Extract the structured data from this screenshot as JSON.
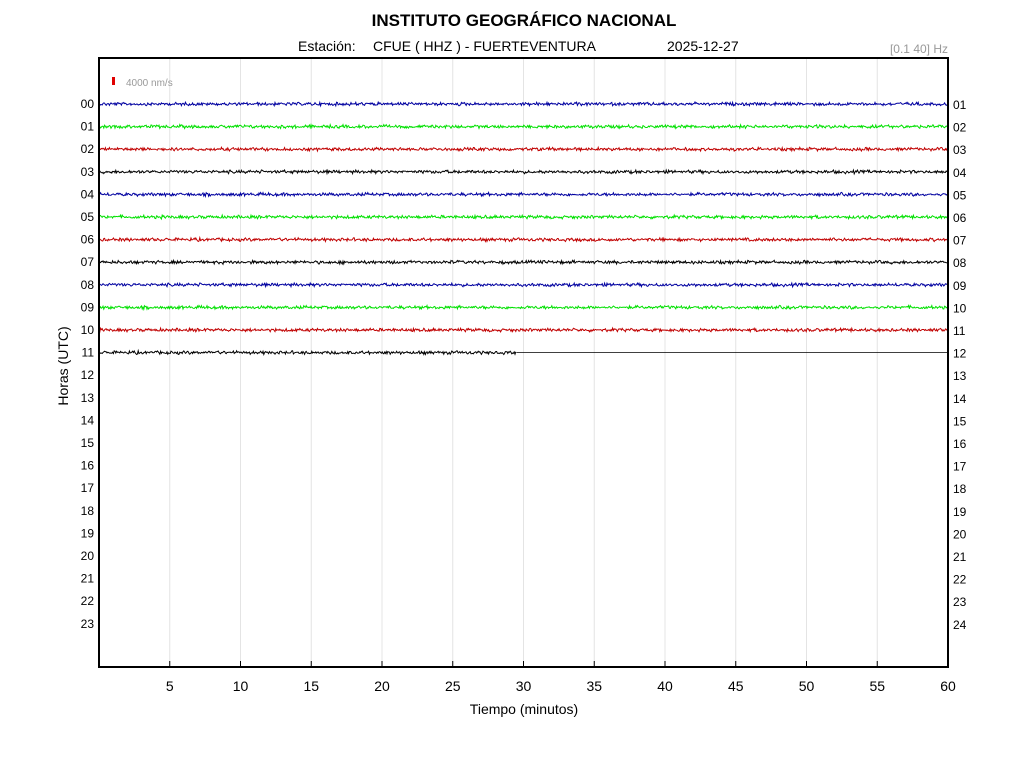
{
  "header": {
    "title": "INSTITUTO GEOGRÁFICO NACIONAL",
    "station_prefix": "Estación:",
    "station": "CFUE ( HHZ ) - FUERTEVENTURA",
    "date": "2025-12-27",
    "band": "[0.1 40] Hz"
  },
  "scale_bar": {
    "label": "4000 nm/s",
    "color": "#e00000"
  },
  "chart_data": {
    "type": "line",
    "title": "INSTITUTO GEOGRÁFICO NACIONAL",
    "xlabel": "Tiempo (minutos)",
    "ylabel": "Horas (UTC)",
    "xlim": [
      0,
      60
    ],
    "x_ticks": [
      "5",
      "10",
      "15",
      "20",
      "25",
      "30",
      "35",
      "40",
      "45",
      "50",
      "55",
      "60"
    ],
    "x_tick_values": [
      5,
      10,
      15,
      20,
      25,
      30,
      35,
      40,
      45,
      50,
      55,
      60
    ],
    "grid": true,
    "left_labels": [
      "00",
      "01",
      "02",
      "03",
      "04",
      "05",
      "06",
      "07",
      "08",
      "09",
      "10",
      "11",
      "12",
      "13",
      "14",
      "15",
      "16",
      "17",
      "18",
      "19",
      "20",
      "21",
      "22",
      "23"
    ],
    "right_labels": [
      "01",
      "02",
      "03",
      "04",
      "05",
      "06",
      "07",
      "08",
      "09",
      "10",
      "11",
      "12",
      "13",
      "14",
      "15",
      "16",
      "17",
      "18",
      "19",
      "20",
      "21",
      "22",
      "23",
      "24"
    ],
    "trace_colors": [
      "#0000a0",
      "#00e000",
      "#c00000",
      "#000000"
    ],
    "series": [
      {
        "hour": "00",
        "color": "#0000a0",
        "recorded_minutes": [
          0,
          60
        ]
      },
      {
        "hour": "01",
        "color": "#00e000",
        "recorded_minutes": [
          0,
          60
        ]
      },
      {
        "hour": "02",
        "color": "#c00000",
        "recorded_minutes": [
          0,
          60
        ]
      },
      {
        "hour": "03",
        "color": "#000000",
        "recorded_minutes": [
          0,
          60
        ]
      },
      {
        "hour": "04",
        "color": "#0000a0",
        "recorded_minutes": [
          0,
          60
        ]
      },
      {
        "hour": "05",
        "color": "#00e000",
        "recorded_minutes": [
          0,
          60
        ]
      },
      {
        "hour": "06",
        "color": "#c00000",
        "recorded_minutes": [
          0,
          60
        ]
      },
      {
        "hour": "07",
        "color": "#000000",
        "recorded_minutes": [
          0,
          60
        ]
      },
      {
        "hour": "08",
        "color": "#0000a0",
        "recorded_minutes": [
          0,
          60
        ]
      },
      {
        "hour": "09",
        "color": "#00e000",
        "recorded_minutes": [
          0,
          60
        ]
      },
      {
        "hour": "10",
        "color": "#c00000",
        "recorded_minutes": [
          0,
          60
        ]
      },
      {
        "hour": "11",
        "color": "#000000",
        "recorded_minutes": [
          0,
          29.5
        ]
      }
    ]
  }
}
